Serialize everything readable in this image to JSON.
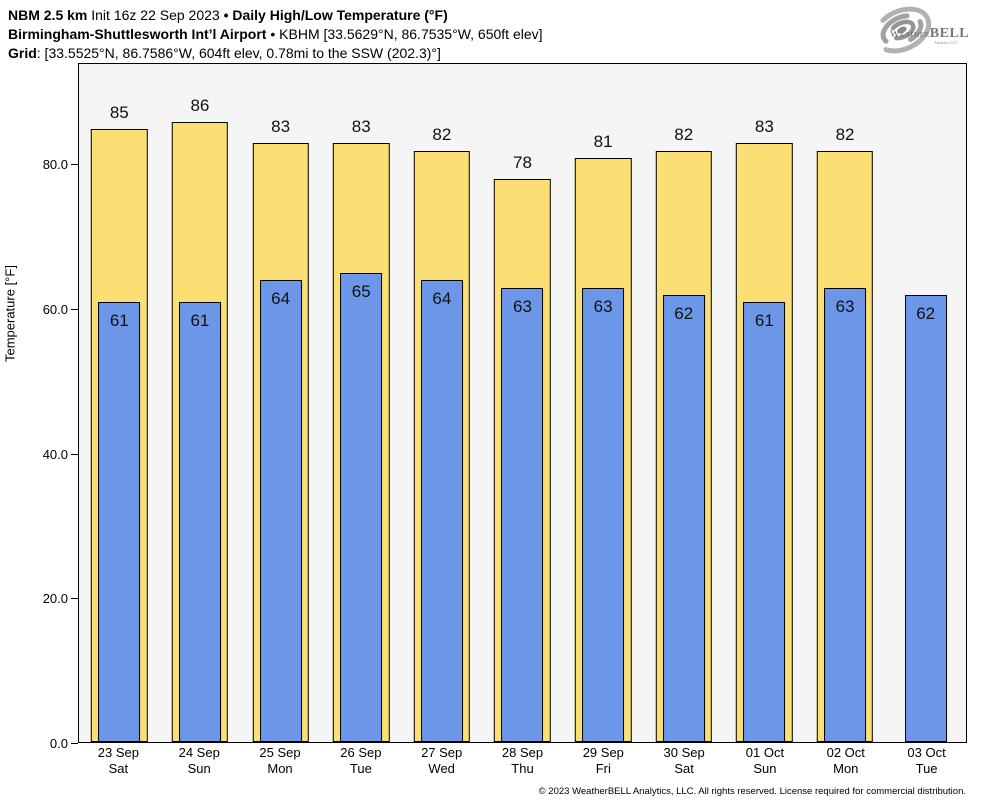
{
  "header": {
    "line1": {
      "bold1": "NBM 2.5 km",
      "regular1": " Init 16z 22 Sep 2023 ",
      "bold2": "• Daily High/Low Temperature (°F)"
    },
    "line2": {
      "bold1": "Birmingham-Shuttlesworth Int’l Airport",
      "regular1": " • KBHM [33.5629°N, 86.7535°W, 650ft elev]"
    },
    "line3": {
      "bold1": "Grid",
      "regular1": ": [33.5525°N, 86.7586°W, 604ft elev, 0.78mi to the SSW (202.3)°]"
    }
  },
  "logo": {
    "word1": "Weather",
    "word2": "BELL",
    "sub": "Analytics LLC"
  },
  "chart_data": {
    "type": "bar",
    "title": "NBM 2.5 km Init 16z 22 Sep 2023 • Daily High/Low Temperature (°F)",
    "subtitle": "Birmingham-Shuttlesworth Int’l Airport • KBHM [33.5629°N, 86.7535°W, 650ft elev]",
    "ylabel": "Temperature [°F]",
    "xlabel": "",
    "ylim": [
      0,
      94
    ],
    "yticks": [
      0,
      20,
      40,
      60,
      80
    ],
    "ytick_labels": [
      "0.0",
      "20.0",
      "40.0",
      "60.0",
      "80.0"
    ],
    "grid": false,
    "legend": "none",
    "plot_bg": "#f5f5f5",
    "categories": [
      "23 Sep",
      "24 Sep",
      "25 Sep",
      "26 Sep",
      "27 Sep",
      "28 Sep",
      "29 Sep",
      "30 Sep",
      "01 Oct",
      "02 Oct",
      "03 Oct"
    ],
    "weekdays": [
      "Sat",
      "Sun",
      "Mon",
      "Tue",
      "Wed",
      "Thu",
      "Fri",
      "Sat",
      "Sun",
      "Mon",
      "Tue"
    ],
    "series": [
      {
        "name": "Daily High",
        "color": "#FBDF74",
        "values": [
          85,
          86,
          83,
          83,
          82,
          78,
          81,
          82,
          83,
          82,
          null
        ]
      },
      {
        "name": "Daily Low",
        "color": "#6C96E8",
        "values": [
          61,
          61,
          64,
          65,
          64,
          63,
          63,
          62,
          61,
          63,
          62
        ]
      }
    ]
  },
  "footer": "© 2023 WeatherBELL Analytics, LLC. All rights reserved. License required for commercial distribution."
}
